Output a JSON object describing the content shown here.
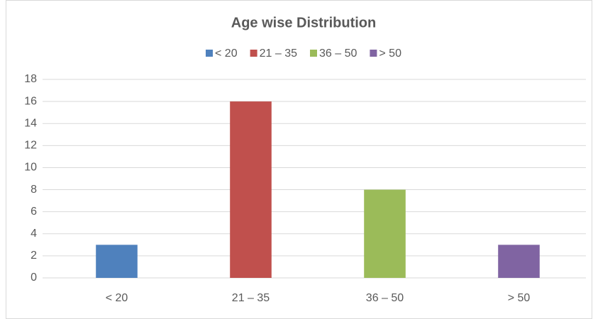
{
  "chart_data": {
    "type": "bar",
    "title": "Age wise Distribution",
    "categories": [
      "< 20",
      "21 – 35",
      "36 – 50",
      "> 50"
    ],
    "values": [
      3,
      16,
      8,
      3
    ],
    "colors": [
      "#4f81bd",
      "#c0504d",
      "#9bbb59",
      "#8064a2"
    ],
    "ylim": [
      0,
      18
    ],
    "yticks": [
      0,
      2,
      4,
      6,
      8,
      10,
      12,
      14,
      16,
      18
    ],
    "grid": true,
    "legend": "top"
  }
}
